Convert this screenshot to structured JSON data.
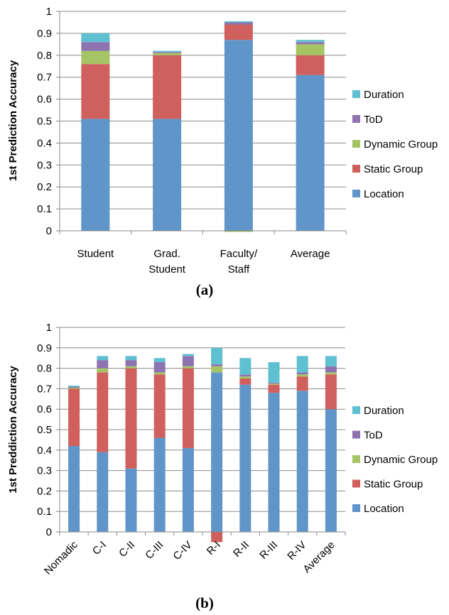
{
  "chart_data": [
    {
      "type": "bar",
      "stacked": true,
      "panel_label": "(a)",
      "ylabel": "1st Prediction Accuracy",
      "ylim": [
        0,
        1
      ],
      "yticks": [
        "0",
        "0.1",
        "0.2",
        "0.3",
        "0.4",
        "0.5",
        "0.6",
        "0.7",
        "0.8",
        "0.9",
        "1"
      ],
      "grid": true,
      "legend_position": "right",
      "categories": [
        "Student",
        "Grad. Student",
        "Faculty/ Staff",
        "Average"
      ],
      "series": [
        {
          "name": "Location",
          "color": "#6095c9",
          "values": [
            0.51,
            0.51,
            0.87,
            0.71
          ]
        },
        {
          "name": "Static Group",
          "color": "#cf605d",
          "values": [
            0.25,
            0.29,
            0.07,
            0.09
          ]
        },
        {
          "name": "Dynamic Group",
          "color": "#a6c464",
          "values": [
            0.06,
            0.01,
            -0.005,
            0.05
          ]
        },
        {
          "name": "ToD",
          "color": "#8d73b0",
          "values": [
            0.04,
            0.005,
            0.01,
            0.01
          ]
        },
        {
          "name": "Duration",
          "color": "#5fc0d2",
          "values": [
            0.04,
            0.005,
            0.005,
            0.01
          ]
        }
      ]
    },
    {
      "type": "bar",
      "stacked": true,
      "panel_label": "(b)",
      "ylabel": "1st Preddiction Accuracy",
      "ylim": [
        0,
        1
      ],
      "yticks": [
        "0",
        "0.1",
        "0.2",
        "0.3",
        "0.4",
        "0.5",
        "0.6",
        "0.7",
        "0.8",
        "0.9",
        "1"
      ],
      "grid": true,
      "legend_position": "right",
      "categories": [
        "Nomadic",
        "C-I",
        "C-II",
        "C-III",
        "C-IV",
        "R-I",
        "R-II",
        "R-III",
        "R-IV",
        "Average"
      ],
      "series": [
        {
          "name": "Location",
          "color": "#6095c9",
          "values": [
            0.42,
            0.39,
            0.31,
            0.46,
            0.41,
            0.78,
            0.72,
            0.68,
            0.69,
            0.6
          ]
        },
        {
          "name": "Static Group",
          "color": "#cf605d",
          "values": [
            0.28,
            0.39,
            0.49,
            0.31,
            0.39,
            -0.05,
            0.03,
            0.04,
            0.07,
            0.17
          ]
        },
        {
          "name": "Dynamic Group",
          "color": "#a6c464",
          "values": [
            0.005,
            0.02,
            0.01,
            0.01,
            0.01,
            0.03,
            0.01,
            0.005,
            0.01,
            0.01
          ]
        },
        {
          "name": "ToD",
          "color": "#8d73b0",
          "values": [
            0.005,
            0.04,
            0.03,
            0.05,
            0.05,
            0.01,
            0.01,
            0.005,
            0.01,
            0.03
          ]
        },
        {
          "name": "Duration",
          "color": "#5fc0d2",
          "values": [
            0.005,
            0.02,
            0.02,
            0.02,
            0.01,
            0.08,
            0.08,
            0.1,
            0.08,
            0.05
          ]
        }
      ]
    }
  ]
}
